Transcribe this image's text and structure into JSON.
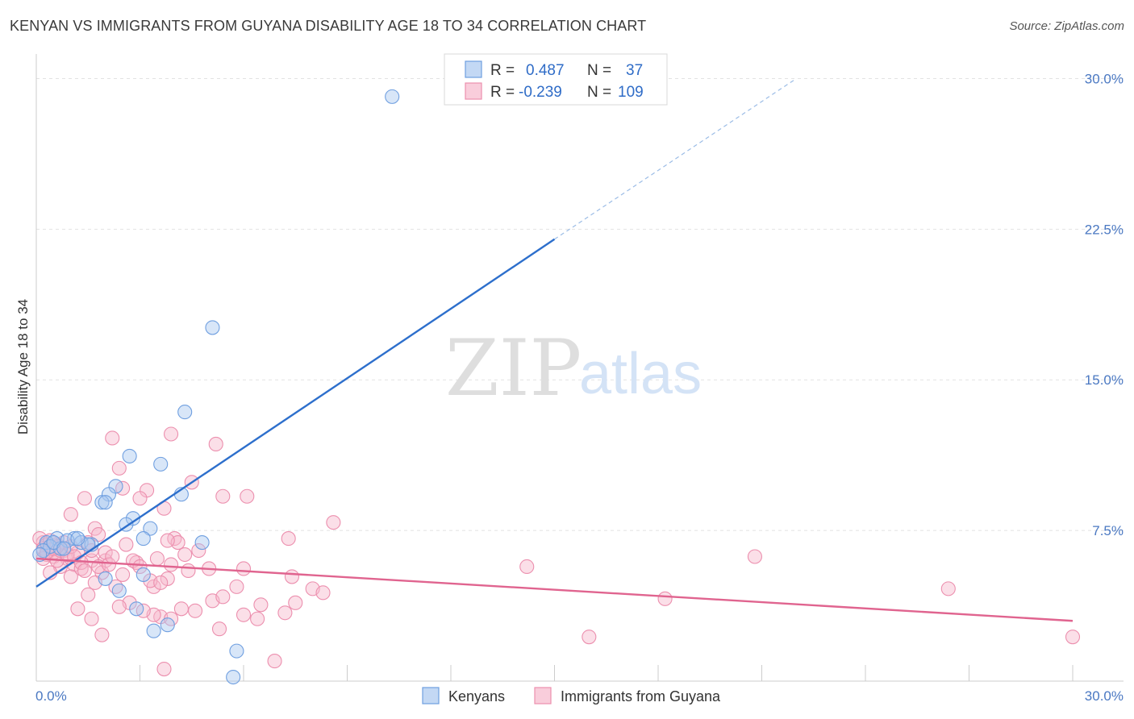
{
  "chart_data": {
    "type": "scatter",
    "title": "KENYAN VS IMMIGRANTS FROM GUYANA DISABILITY AGE 18 TO 34 CORRELATION CHART",
    "source": "Source: ZipAtlas.com",
    "xlabel": "",
    "ylabel": "Disability Age 18 to 34",
    "xlim": [
      0,
      30
    ],
    "ylim": [
      0,
      30.7
    ],
    "x_tick_labels": [
      "0.0%",
      "30.0%"
    ],
    "y_ticks": [
      7.5,
      15.0,
      22.5,
      30.0
    ],
    "y_tick_labels": [
      "7.5%",
      "15.0%",
      "22.5%",
      "30.0%"
    ],
    "grid": true,
    "watermark": {
      "zip": "ZIP",
      "atlas": "atlas"
    },
    "stats_legend": {
      "r_label": "R =",
      "n_label": "N =",
      "rows": [
        {
          "r": "0.487",
          "n": "37"
        },
        {
          "r": "-0.239",
          "n": "109"
        }
      ]
    },
    "colors": {
      "kenyans_fill": "#a9c8f0",
      "kenyans_stroke": "#6f9fe0",
      "kenyans_line": "#2d6fcc",
      "guyana_fill": "#f6b8cc",
      "guyana_stroke": "#ec8fae",
      "guyana_line": "#e0648f",
      "grid": "#e2e2e2",
      "axis": "#cccccc"
    },
    "series": [
      {
        "name": "Kenyans",
        "regression": {
          "x0": 0,
          "y0": 4.7,
          "x1": 15,
          "y1": 22.0,
          "x_dash_end": 22,
          "y_dash_end": 30.0
        },
        "points": [
          [
            10.3,
            29.1
          ],
          [
            5.1,
            17.6
          ],
          [
            4.3,
            13.4
          ],
          [
            2.7,
            11.2
          ],
          [
            3.6,
            10.8
          ],
          [
            2.3,
            9.7
          ],
          [
            4.2,
            9.3
          ],
          [
            2.1,
            9.3
          ],
          [
            1.9,
            8.9
          ],
          [
            2.0,
            8.9
          ],
          [
            2.8,
            8.1
          ],
          [
            2.6,
            7.8
          ],
          [
            3.3,
            7.6
          ],
          [
            3.1,
            7.1
          ],
          [
            1.1,
            7.1
          ],
          [
            0.6,
            7.1
          ],
          [
            0.9,
            7.0
          ],
          [
            1.3,
            6.9
          ],
          [
            1.6,
            6.8
          ],
          [
            1.5,
            6.8
          ],
          [
            0.3,
            6.9
          ],
          [
            0.4,
            6.7
          ],
          [
            0.7,
            6.6
          ],
          [
            0.2,
            6.5
          ],
          [
            0.1,
            6.3
          ],
          [
            4.8,
            6.9
          ],
          [
            3.1,
            5.3
          ],
          [
            2.0,
            5.1
          ],
          [
            2.4,
            4.5
          ],
          [
            2.9,
            3.6
          ],
          [
            3.4,
            2.5
          ],
          [
            3.8,
            2.8
          ],
          [
            5.8,
            1.5
          ],
          [
            5.7,
            0.2
          ],
          [
            0.5,
            6.9
          ],
          [
            0.8,
            6.6
          ],
          [
            1.2,
            7.1
          ]
        ]
      },
      {
        "name": "Immigrants from Guyana",
        "regression": {
          "x0": 0,
          "y0": 6.1,
          "x1": 30,
          "y1": 3.0
        },
        "points": [
          [
            2.2,
            12.1
          ],
          [
            3.9,
            12.3
          ],
          [
            5.2,
            11.8
          ],
          [
            2.4,
            10.6
          ],
          [
            4.5,
            9.9
          ],
          [
            3.2,
            9.5
          ],
          [
            1.4,
            9.1
          ],
          [
            3.0,
            9.1
          ],
          [
            5.4,
            9.2
          ],
          [
            6.1,
            9.2
          ],
          [
            2.5,
            9.6
          ],
          [
            3.7,
            8.6
          ],
          [
            1.0,
            8.3
          ],
          [
            8.6,
            7.9
          ],
          [
            1.7,
            7.6
          ],
          [
            1.8,
            7.3
          ],
          [
            7.3,
            7.1
          ],
          [
            1.5,
            6.9
          ],
          [
            0.6,
            6.8
          ],
          [
            2.6,
            6.8
          ],
          [
            4.0,
            7.1
          ],
          [
            4.1,
            6.9
          ],
          [
            3.8,
            7.0
          ],
          [
            0.2,
            6.9
          ],
          [
            0.4,
            6.6
          ],
          [
            0.8,
            6.5
          ],
          [
            1.2,
            6.4
          ],
          [
            0.3,
            6.3
          ],
          [
            0.5,
            6.2
          ],
          [
            0.9,
            6.1
          ],
          [
            1.6,
            6.0
          ],
          [
            2.0,
            6.0
          ],
          [
            1.1,
            5.8
          ],
          [
            2.9,
            5.9
          ],
          [
            0.7,
            5.7
          ],
          [
            1.3,
            5.6
          ],
          [
            4.4,
            5.5
          ],
          [
            6.0,
            5.6
          ],
          [
            0.4,
            5.4
          ],
          [
            1.9,
            5.4
          ],
          [
            1.0,
            5.2
          ],
          [
            7.4,
            5.2
          ],
          [
            3.8,
            5.1
          ],
          [
            1.7,
            4.9
          ],
          [
            5.8,
            4.7
          ],
          [
            8.0,
            4.6
          ],
          [
            8.3,
            4.4
          ],
          [
            14.2,
            5.7
          ],
          [
            20.8,
            6.2
          ],
          [
            26.4,
            4.6
          ],
          [
            1.5,
            4.3
          ],
          [
            2.3,
            4.7
          ],
          [
            3.4,
            4.7
          ],
          [
            2.7,
            3.9
          ],
          [
            5.1,
            4.0
          ],
          [
            5.4,
            4.2
          ],
          [
            6.5,
            3.8
          ],
          [
            2.4,
            3.7
          ],
          [
            3.6,
            3.2
          ],
          [
            7.5,
            3.9
          ],
          [
            1.2,
            3.6
          ],
          [
            4.2,
            3.6
          ],
          [
            4.6,
            3.5
          ],
          [
            3.4,
            3.3
          ],
          [
            3.1,
            3.5
          ],
          [
            6.0,
            3.3
          ],
          [
            7.2,
            3.4
          ],
          [
            1.6,
            3.1
          ],
          [
            3.9,
            3.1
          ],
          [
            6.4,
            3.1
          ],
          [
            5.3,
            2.6
          ],
          [
            1.9,
            2.3
          ],
          [
            16.0,
            2.2
          ],
          [
            18.2,
            4.1
          ],
          [
            30.0,
            2.2
          ],
          [
            6.9,
            1.0
          ],
          [
            3.7,
            0.6
          ],
          [
            0.1,
            7.1
          ],
          [
            0.2,
            6.6
          ],
          [
            0.3,
            6.8
          ],
          [
            0.5,
            6.4
          ],
          [
            0.6,
            6.0
          ],
          [
            0.7,
            6.5
          ],
          [
            0.8,
            6.9
          ],
          [
            0.9,
            6.3
          ],
          [
            1.0,
            6.7
          ],
          [
            1.1,
            6.2
          ],
          [
            1.3,
            5.9
          ],
          [
            1.4,
            5.5
          ],
          [
            1.6,
            6.5
          ],
          [
            1.8,
            5.7
          ],
          [
            2.0,
            6.4
          ],
          [
            2.1,
            5.8
          ],
          [
            2.2,
            6.2
          ],
          [
            2.5,
            5.3
          ],
          [
            2.8,
            6.0
          ],
          [
            3.0,
            5.7
          ],
          [
            3.3,
            5.0
          ],
          [
            3.5,
            6.1
          ],
          [
            3.6,
            4.9
          ],
          [
            3.9,
            5.8
          ],
          [
            4.3,
            6.3
          ],
          [
            4.7,
            6.5
          ],
          [
            5.0,
            5.6
          ],
          [
            0.2,
            6.1
          ],
          [
            0.4,
            7.0
          ],
          [
            0.6,
            6.7
          ],
          [
            0.3,
            6.4
          ],
          [
            0.5,
            6.6
          ]
        ]
      }
    ]
  }
}
